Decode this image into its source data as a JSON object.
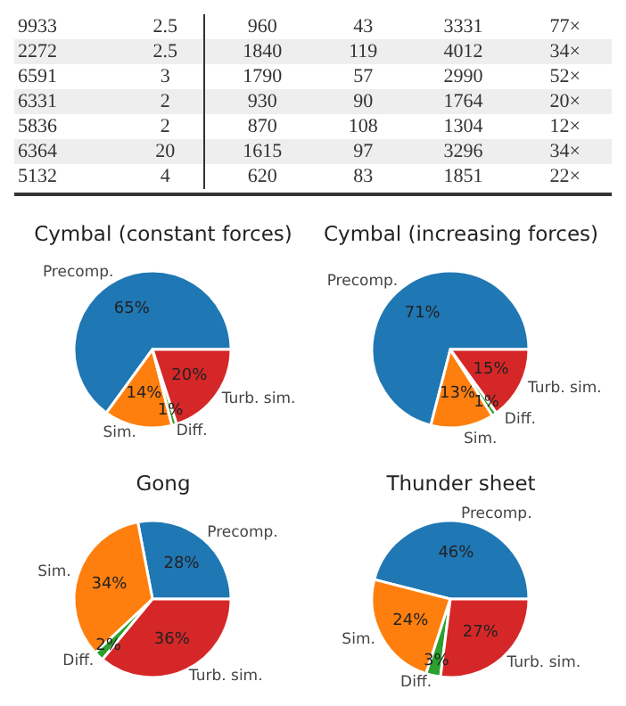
{
  "chart_data": [
    {
      "type": "other",
      "cells": [
        [
          "9933",
          "2.5",
          "960",
          "43",
          "3331",
          "77×"
        ],
        [
          "2272",
          "2.5",
          "1840",
          "119",
          "4012",
          "34×"
        ],
        [
          "6591",
          "3",
          "1790",
          "57",
          "2990",
          "52×"
        ],
        [
          "6331",
          "2",
          "930",
          "90",
          "1764",
          "20×"
        ],
        [
          "5836",
          "2",
          "870",
          "108",
          "1304",
          "12×"
        ],
        [
          "6364",
          "20",
          "1615",
          "97",
          "3296",
          "34×"
        ],
        [
          "5132",
          "4",
          "620",
          "83",
          "1851",
          "22×"
        ]
      ]
    },
    {
      "type": "pie",
      "title": "Cymbal (constant forces)",
      "categories": [
        "Precomp.",
        "Sim.",
        "Diff.",
        "Turb. sim."
      ],
      "values": [
        65,
        14,
        1,
        20
      ],
      "value_labels": [
        "65%",
        "14%",
        "1%",
        "20%"
      ],
      "colors": [
        "#1f77b4",
        "#ff7f0e",
        "#2ca02c",
        "#d62728"
      ]
    },
    {
      "type": "pie",
      "title": "Cymbal (increasing forces)",
      "categories": [
        "Precomp.",
        "Sim.",
        "Diff.",
        "Turb. sim."
      ],
      "values": [
        71,
        13,
        1,
        15
      ],
      "value_labels": [
        "71%",
        "13%",
        "1%",
        "15%"
      ],
      "colors": [
        "#1f77b4",
        "#ff7f0e",
        "#2ca02c",
        "#d62728"
      ]
    },
    {
      "type": "pie",
      "title": "Gong",
      "categories": [
        "Precomp.",
        "Sim.",
        "Diff.",
        "Turb. sim."
      ],
      "values": [
        28,
        34,
        2,
        36
      ],
      "value_labels": [
        "28%",
        "34%",
        "2%",
        "36%"
      ],
      "colors": [
        "#1f77b4",
        "#ff7f0e",
        "#2ca02c",
        "#d62728"
      ]
    },
    {
      "type": "pie",
      "title": "Thunder sheet",
      "categories": [
        "Precomp.",
        "Sim.",
        "Diff.",
        "Turb. sim."
      ],
      "values": [
        46,
        24,
        3,
        27
      ],
      "value_labels": [
        "46%",
        "24%",
        "3%",
        "27%"
      ],
      "colors": [
        "#1f77b4",
        "#ff7f0e",
        "#2ca02c",
        "#d62728"
      ]
    }
  ]
}
